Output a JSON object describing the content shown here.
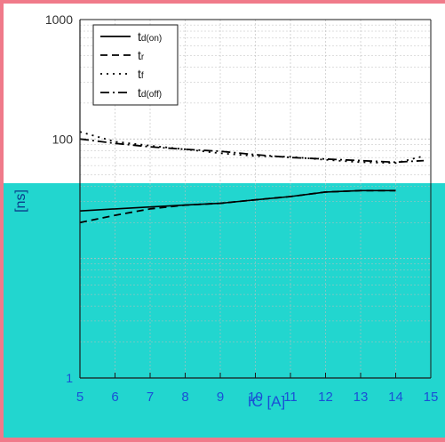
{
  "colors": {
    "page_bg": "#f07a8a",
    "panel_bg": "#ffffff",
    "cyan_band": "#22d6cf",
    "axis_color": "#1a1a1a",
    "grid_color": "#bdbdbd",
    "tick_label_top": "#333333",
    "tick_label_bottom": "#1a4fd6",
    "xlabel_color": "#1a4fd6",
    "series_color": "#000000"
  },
  "chart_data": {
    "type": "line",
    "title": "",
    "xlabel": "IC [A]",
    "ylabel": "[ns]",
    "xlim": [
      5,
      15
    ],
    "ylim": [
      1,
      1000
    ],
    "yscale": "log",
    "grid": true,
    "legend_position": "top-left",
    "x_ticks": [
      "5",
      "6",
      "7",
      "8",
      "9",
      "10",
      "11",
      "12",
      "13",
      "14",
      "15"
    ],
    "y_ticks": [
      "1",
      "100",
      "1000"
    ],
    "series": [
      {
        "name": "td(on)",
        "style": "solid",
        "x": [
          5,
          6,
          7,
          8,
          9,
          10,
          11,
          12,
          13,
          14
        ],
        "y": [
          25,
          26,
          27,
          28,
          29,
          31,
          33,
          36,
          37,
          37
        ]
      },
      {
        "name": "tr",
        "style": "dash",
        "x": [
          5,
          6,
          7,
          8,
          9,
          10,
          11,
          12,
          13,
          14
        ],
        "y": [
          20,
          23,
          26,
          28,
          29,
          31,
          33,
          36,
          37,
          37
        ]
      },
      {
        "name": "tf",
        "style": "dot",
        "x": [
          5,
          6,
          7,
          8,
          9,
          10,
          11,
          12,
          13,
          14,
          14.8
        ],
        "y": [
          115,
          95,
          88,
          82,
          76,
          72,
          71,
          67,
          64,
          63,
          72
        ]
      },
      {
        "name": "td(off)",
        "style": "dashdot",
        "x": [
          5,
          6,
          7,
          8,
          9,
          10,
          11,
          12,
          13,
          14,
          14.8
        ],
        "y": [
          100,
          92,
          86,
          82,
          79,
          74,
          70,
          68,
          66,
          64,
          66
        ]
      }
    ],
    "legend": {
      "entries": [
        {
          "main": "t",
          "sub": "d(on)"
        },
        {
          "main": "t",
          "sub": "r"
        },
        {
          "main": "t",
          "sub": "f"
        },
        {
          "main": "t",
          "sub": "d(off)"
        }
      ]
    }
  }
}
